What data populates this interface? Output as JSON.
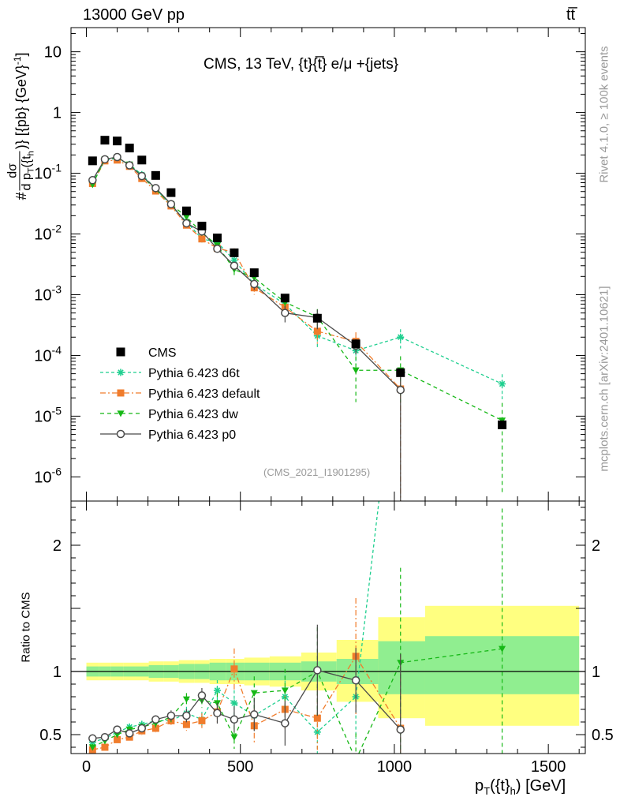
{
  "header": {
    "left": "13000 GeV pp",
    "right": "tt̅"
  },
  "side_labels": {
    "rivet": "Rivet 4.1.0, ≥ 100k events",
    "source": "mcplots.cern.ch [arXiv:2401.10621]"
  },
  "chart_data": [
    {
      "type": "scatter",
      "panel": "main",
      "title": "CMS, 13 TeV, {t}{t̅} e/μ +{jets}",
      "annotation": "(CMS_2021_I1901295)",
      "ylabel": "#dσ/dp_T({t}_h) [{pb} {GeV}^-1]",
      "ylabel_parts": {
        "hash": "#",
        "numerator": "dσ",
        "denominator": "d p",
        "denominator_sub": "T",
        "denominator_arg": "({t",
        "denominator_arg_sub": "h",
        "tail": ")} [{pb} {GeV}",
        "tail_sup": "-1",
        "tail_end": "]"
      },
      "yscale": "log",
      "ylim": [
        4e-07,
        25
      ],
      "xlim": [
        -50,
        1620
      ],
      "y_tick_labels": [
        "10",
        "1",
        "10⁻¹",
        "10⁻²",
        "10⁻³",
        "10⁻⁴",
        "10⁻⁵",
        "10⁻⁶"
      ],
      "y_ticks": [
        10,
        1,
        0.1,
        0.01,
        0.001,
        0.0001,
        1e-05,
        1e-06
      ],
      "y_tick_parts": [
        {
          "base": "10",
          "exp": ""
        },
        {
          "base": "1",
          "exp": ""
        },
        {
          "base": "10",
          "exp": "-1"
        },
        {
          "base": "10",
          "exp": "-2"
        },
        {
          "base": "10",
          "exp": "-3"
        },
        {
          "base": "10",
          "exp": "-4"
        },
        {
          "base": "10",
          "exp": "-5"
        },
        {
          "base": "10",
          "exp": "-6"
        }
      ],
      "legend_position": "lower-left",
      "series": [
        {
          "name": "CMS",
          "style": "square",
          "color": "#000000",
          "x": [
            20,
            60,
            100,
            140,
            180,
            225,
            275,
            325,
            375,
            425,
            480,
            545,
            645,
            750,
            875,
            1020,
            1350
          ],
          "y": [
            0.16,
            0.35,
            0.34,
            0.26,
            0.165,
            0.092,
            0.048,
            0.024,
            0.0135,
            0.0086,
            0.0049,
            0.0023,
            0.00088,
            0.00041,
            0.000155,
            5.2e-05,
            7.2e-06
          ],
          "band_lo": [
            0.96,
            0.96,
            0.96,
            0.96,
            0.96,
            0.95,
            0.95,
            0.94,
            0.94,
            0.93,
            0.93,
            0.93,
            0.93,
            0.92,
            0.9,
            0.82,
            0.82
          ],
          "band_hi": [
            1.04,
            1.04,
            1.04,
            1.04,
            1.04,
            1.05,
            1.05,
            1.06,
            1.06,
            1.07,
            1.07,
            1.07,
            1.07,
            1.08,
            1.1,
            1.24,
            1.28
          ],
          "band2_lo": [
            0.93,
            0.93,
            0.93,
            0.93,
            0.93,
            0.92,
            0.92,
            0.91,
            0.91,
            0.9,
            0.9,
            0.89,
            0.88,
            0.85,
            0.76,
            0.63,
            0.57
          ],
          "band2_hi": [
            1.07,
            1.07,
            1.07,
            1.07,
            1.07,
            1.08,
            1.08,
            1.09,
            1.09,
            1.1,
            1.1,
            1.11,
            1.12,
            1.15,
            1.25,
            1.43,
            1.52
          ]
        },
        {
          "name": "Pythia 6.423 d6t",
          "style": "star",
          "color": "#1fcf8f",
          "dash": "4,3",
          "x": [
            20,
            60,
            100,
            140,
            180,
            225,
            275,
            325,
            375,
            425,
            480,
            545,
            645,
            750,
            875,
            1020,
            1350
          ],
          "y": [
            0.07,
            0.165,
            0.175,
            0.14,
            0.095,
            0.056,
            0.029,
            0.016,
            0.0083,
            0.0073,
            0.0037,
            0.0015,
            0.0007,
            0.00021,
            0.00012,
            0.0002,
            3.4e-05
          ],
          "err": [
            0.004,
            0.008,
            0.008,
            0.007,
            0.005,
            0.003,
            0.002,
            0.0012,
            0.0008,
            0.0007,
            0.0005,
            0.0003,
            0.00015,
            8e-05,
            5e-05,
            7e-05,
            1.5e-05
          ],
          "ratio": [
            0.44,
            0.47,
            0.52,
            0.56,
            0.58,
            0.61,
            0.61,
            0.67,
            0.62,
            0.85,
            0.75,
            0.65,
            0.8,
            0.52,
            0.8,
            3.8,
            4.7
          ]
        },
        {
          "name": "Pythia 6.423 default",
          "style": "square",
          "color": "#f07c2c",
          "dash": "7,3,2,3",
          "x": [
            20,
            60,
            100,
            140,
            180,
            225,
            275,
            325,
            375,
            425,
            480,
            545,
            645,
            750,
            875,
            1020
          ],
          "y": [
            0.068,
            0.16,
            0.165,
            0.13,
            0.082,
            0.051,
            0.029,
            0.014,
            0.0083,
            0.0058,
            0.005,
            0.0013,
            0.00062,
            0.00025,
            0.00017,
            2.8e-05
          ],
          "err": [
            0.004,
            0.008,
            0.008,
            0.007,
            0.005,
            0.003,
            0.002,
            0.0012,
            0.0008,
            0.0007,
            0.0008,
            0.0003,
            0.00015,
            0.0001,
            7e-05,
            3e-05
          ],
          "ratio": [
            0.38,
            0.4,
            0.46,
            0.48,
            0.53,
            0.55,
            0.61,
            0.58,
            0.61,
            0.68,
            1.02,
            0.57,
            0.7,
            0.63,
            1.12,
            0.55
          ]
        },
        {
          "name": "Pythia 6.423 dw",
          "style": "triangle-down",
          "color": "#16b816",
          "dash": "5,4",
          "x": [
            20,
            60,
            100,
            140,
            180,
            225,
            275,
            325,
            375,
            425,
            480,
            545,
            645,
            750,
            875,
            1020,
            1350
          ],
          "y": [
            0.065,
            0.17,
            0.18,
            0.14,
            0.09,
            0.054,
            0.031,
            0.019,
            0.0105,
            0.0065,
            0.0026,
            0.0019,
            0.00075,
            0.00043,
            5.7e-05,
            5.7e-05,
            8.5e-06
          ],
          "err": [
            0.004,
            0.008,
            0.008,
            0.007,
            0.005,
            0.003,
            0.002,
            0.0012,
            0.0008,
            0.0007,
            0.0005,
            0.0003,
            0.00015,
            0.00015,
            4e-05,
            4e-05,
            8e-06
          ],
          "ratio": [
            0.4,
            0.45,
            0.5,
            0.54,
            0.56,
            0.59,
            0.64,
            0.78,
            0.77,
            0.75,
            0.48,
            0.83,
            0.85,
            1.0,
            0.3,
            1.07,
            1.18
          ]
        },
        {
          "name": "Pythia 6.423 p0",
          "style": "circle-open",
          "color": "#4a4a4a",
          "dash": "",
          "x": [
            20,
            60,
            100,
            140,
            180,
            225,
            275,
            325,
            375,
            425,
            480,
            545,
            645,
            750,
            875,
            1020
          ],
          "y": [
            0.077,
            0.17,
            0.185,
            0.135,
            0.09,
            0.057,
            0.031,
            0.015,
            0.011,
            0.0057,
            0.003,
            0.0015,
            0.0005,
            0.00042,
            0.000145,
            2.7e-05
          ],
          "err": [
            0.004,
            0.008,
            0.008,
            0.007,
            0.005,
            0.003,
            0.002,
            0.0012,
            0.0008,
            0.0007,
            0.0005,
            0.0003,
            0.00015,
            0.00015,
            4e-05,
            3e-05
          ],
          "ratio": [
            0.47,
            0.48,
            0.54,
            0.51,
            0.55,
            0.62,
            0.65,
            0.65,
            0.81,
            0.67,
            0.62,
            0.66,
            0.59,
            1.01,
            0.93,
            0.54
          ]
        }
      ]
    },
    {
      "type": "scatter",
      "panel": "ratio",
      "ylabel": "Ratio to CMS",
      "xlabel": "p_T({t}_h) [GeV]",
      "xlabel_parts": {
        "p": "p",
        "sub": "T",
        "arg": "({t}",
        "arg_sub": "h",
        "tail": ") [GeV]"
      },
      "ylim": [
        0.35,
        2.35
      ],
      "y_tick_labels": [
        "0.5",
        "1",
        "2"
      ],
      "y_ticks": [
        0.5,
        1,
        2
      ],
      "x_tick_labels": [
        "0",
        "500",
        "1000",
        "1500"
      ],
      "x_ticks": [
        0,
        500,
        1000,
        1500
      ],
      "reference_line": 1
    }
  ]
}
